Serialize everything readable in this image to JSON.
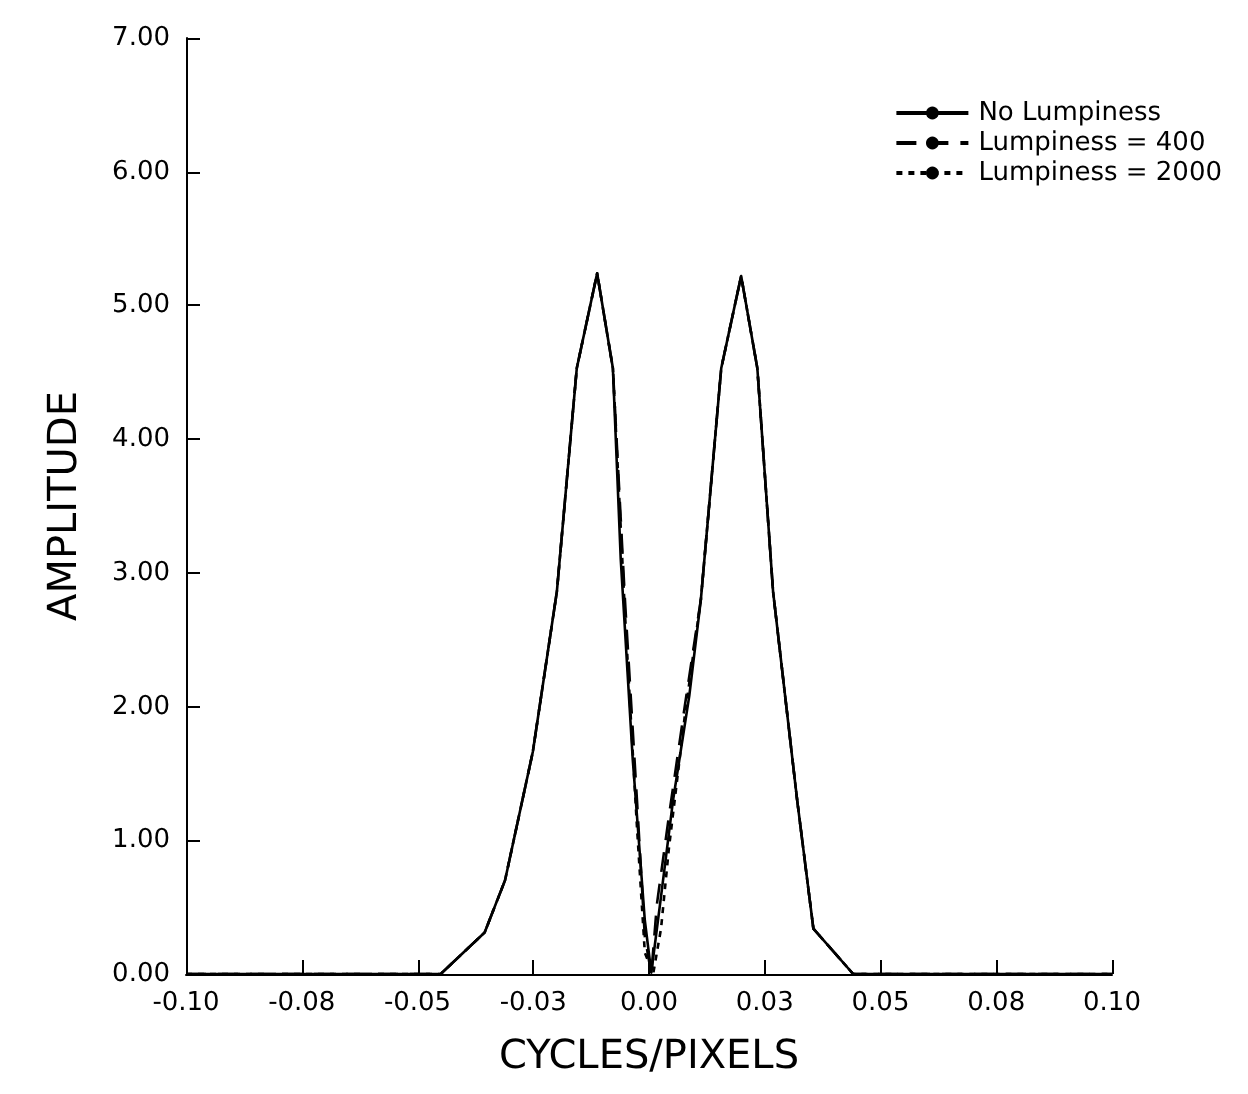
{
  "chart_data": {
    "type": "line",
    "xlabel": "CYCLES/PIXELS",
    "ylabel": "AMPLITUDE",
    "xlim": [
      -0.1,
      0.1
    ],
    "xticks": [
      {
        "value": -0.1,
        "label": "-0.10"
      },
      {
        "value": -0.075,
        "label": "-0.08"
      },
      {
        "value": -0.05,
        "label": "-0.05"
      },
      {
        "value": -0.025,
        "label": "-0.03"
      },
      {
        "value": 0,
        "label": "0.00"
      },
      {
        "value": 0.025,
        "label": "0.03"
      },
      {
        "value": 0.05,
        "label": "0.05"
      },
      {
        "value": 0.075,
        "label": "0.08"
      },
      {
        "value": 0.1,
        "label": "0.10"
      }
    ],
    "ylim": [
      0,
      7
    ],
    "yticks": [
      {
        "value": 0,
        "label": "0.00"
      },
      {
        "value": 1,
        "label": "1.00"
      },
      {
        "value": 2,
        "label": "2.00"
      },
      {
        "value": 3,
        "label": "3.00"
      },
      {
        "value": 4,
        "label": "4.00"
      },
      {
        "value": 5,
        "label": "5.00"
      },
      {
        "value": 6,
        "label": "6.00"
      },
      {
        "value": 7,
        "label": "7.00"
      }
    ],
    "grid": false,
    "legend": "top right",
    "marker": "none",
    "series": [
      {
        "name": "No Lumpiness",
        "color": "#000000",
        "line_style": "solid",
        "x": [
          -0.1,
          -0.045,
          -0.0355,
          -0.0311,
          -0.0251,
          -0.0199,
          -0.0156,
          -0.0112,
          -0.0078,
          -0.0061,
          -0.0035,
          -0.0009,
          0.0005,
          0.0026,
          0.0052,
          0.0087,
          0.0112,
          0.0156,
          0.0199,
          0.0234,
          0.0268,
          0.032,
          0.0355,
          0.0441,
          0.1
        ],
        "values": [
          0,
          0,
          0.31,
          0.7,
          1.66,
          2.86,
          4.53,
          5.24,
          4.53,
          3.1,
          1.6,
          0.4,
          0.01,
          0.58,
          1.3,
          2.08,
          2.8,
          4.53,
          5.22,
          4.53,
          2.86,
          1.3,
          0.34,
          0,
          0
        ]
      },
      {
        "name": "Lumpiness = 400",
        "color": "#000000",
        "line_style": "dashed",
        "x": [
          -0.1,
          -0.045,
          -0.0355,
          -0.0311,
          -0.0251,
          -0.0199,
          -0.0156,
          -0.0112,
          -0.0078,
          -0.0052,
          -0.0026,
          -0.0009,
          0.0005,
          0.0017,
          0.0043,
          0.0078,
          0.0112,
          0.0156,
          0.0199,
          0.0234,
          0.0268,
          0.032,
          0.0355,
          0.0441,
          0.1
        ],
        "values": [
          0,
          0,
          0.31,
          0.7,
          1.66,
          2.86,
          4.53,
          5.24,
          4.53,
          2.8,
          1.3,
          0.28,
          0,
          0.52,
          1.18,
          2.02,
          2.8,
          4.53,
          5.22,
          4.53,
          2.86,
          1.3,
          0.34,
          0,
          0
        ]
      },
      {
        "name": "Lumpiness = 2000",
        "color": "#000000",
        "line_style": "dotted",
        "x": [
          -0.1,
          -0.045,
          -0.0355,
          -0.0311,
          -0.0251,
          -0.0199,
          -0.0156,
          -0.0112,
          -0.0078,
          -0.0052,
          -0.0026,
          -0.0009,
          0.0009,
          0.0026,
          0.0043,
          0.0078,
          0.0112,
          0.0156,
          0.0199,
          0.0234,
          0.0268,
          0.032,
          0.0355,
          0.0441,
          0.1
        ],
        "values": [
          0,
          0,
          0.31,
          0.7,
          1.66,
          2.86,
          4.53,
          5.24,
          4.53,
          2.7,
          1.1,
          0.16,
          0,
          0.34,
          0.94,
          1.95,
          2.8,
          4.53,
          5.22,
          4.53,
          2.86,
          1.3,
          0.34,
          0,
          0
        ]
      }
    ]
  }
}
